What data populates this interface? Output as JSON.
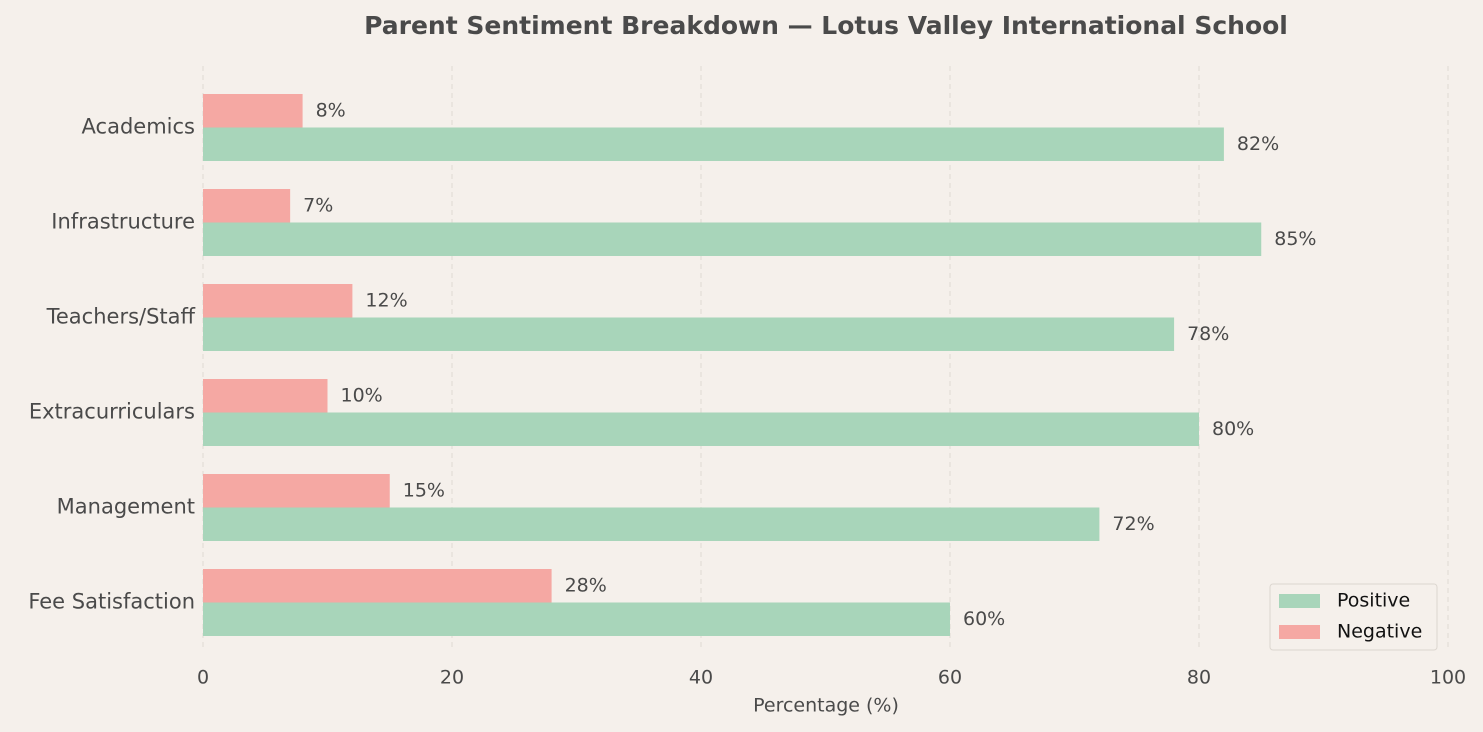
{
  "chart_data": {
    "type": "barh",
    "title": "Parent Sentiment Breakdown — Lotus Valley International School",
    "categories": [
      "Academics",
      "Infrastructure",
      "Teachers/Staff",
      "Extracurriculars",
      "Management",
      "Fee Satisfaction"
    ],
    "series": [
      {
        "name": "Positive",
        "color": "#a8d5ba",
        "values": [
          82,
          85,
          78,
          80,
          72,
          60
        ],
        "value_labels": [
          "82%",
          "85%",
          "78%",
          "80%",
          "72%",
          "60%"
        ]
      },
      {
        "name": "Negative",
        "color": "#f5a8a3",
        "values": [
          8,
          7,
          12,
          10,
          15,
          28
        ],
        "value_labels": [
          "8%",
          "7%",
          "12%",
          "10%",
          "15%",
          "28%"
        ]
      }
    ],
    "xlabel": "Percentage (%)",
    "xlim": [
      0,
      100
    ],
    "xticks": [
      0,
      20,
      40,
      60,
      80,
      100
    ],
    "grid": true,
    "legend": "lower right"
  }
}
